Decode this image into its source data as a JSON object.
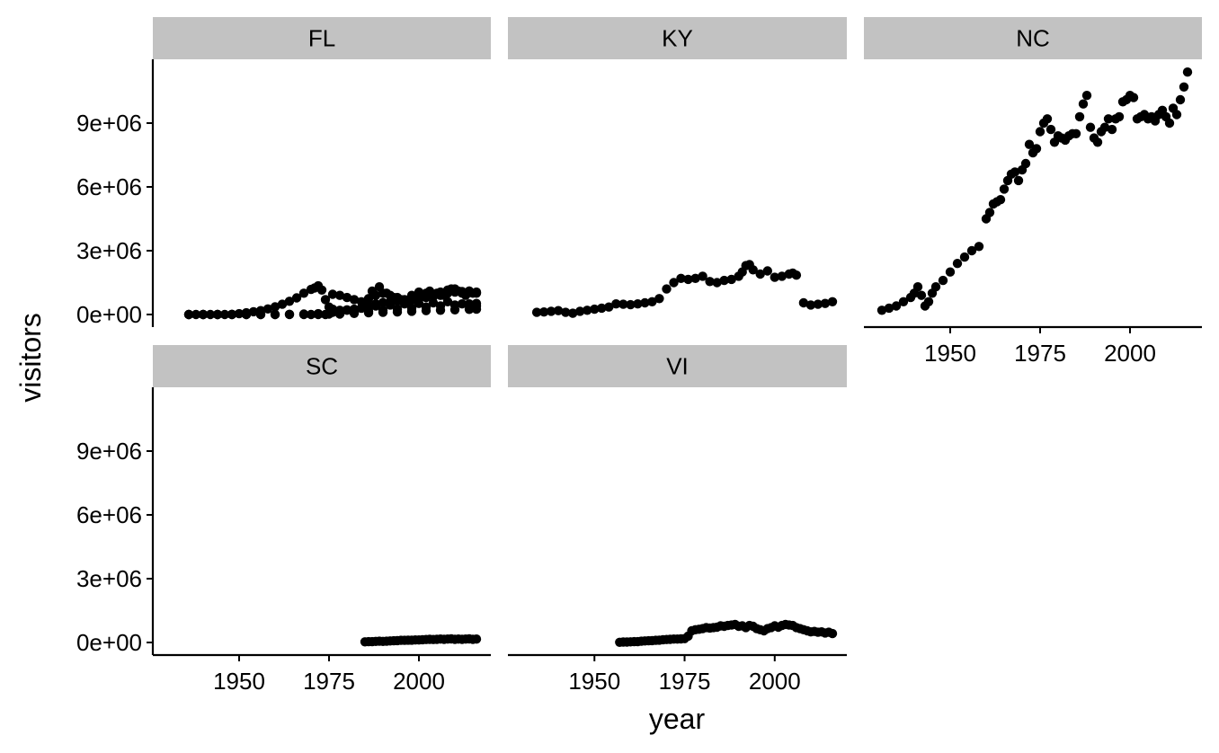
{
  "chart_data": {
    "type": "scatter",
    "facet_by": "state",
    "xlabel": "year",
    "ylabel": "visitors",
    "xlim": [
      1926,
      2020
    ],
    "ylim": [
      -500000,
      12000000
    ],
    "x_ticks": [
      1950,
      1975,
      2000
    ],
    "y_ticks": [
      0,
      3000000,
      6000000,
      9000000
    ],
    "x_tick_labels": [
      "1950",
      "1975",
      "2000"
    ],
    "y_tick_labels": [
      "0e+00",
      "3e+06",
      "6e+06",
      "9e+06"
    ],
    "grid": false,
    "point_color": "#000000",
    "strip_color": "#c2c2c2",
    "panels": [
      {
        "label": "FL",
        "series": [
          {
            "x": [
              1936,
              1938,
              1940,
              1942,
              1944,
              1946,
              1948,
              1950,
              1952,
              1954,
              1956,
              1958,
              1960,
              1962,
              1964,
              1966,
              1968,
              1970,
              1971,
              1972,
              1973,
              1974,
              1975,
              1976,
              1978,
              1980,
              1982,
              1984,
              1986,
              1988,
              1990,
              1992,
              1994,
              1996,
              1998,
              2000,
              2002,
              2004,
              2006,
              2008,
              2010,
              2012,
              2014,
              2016
            ],
            "y": [
              0,
              0,
              0,
              0,
              0,
              0,
              10000,
              40000,
              80000,
              130000,
              180000,
              260000,
              360000,
              480000,
              620000,
              780000,
              1000000,
              1180000,
              1250000,
              1350000,
              1150000,
              700000,
              350000,
              250000,
              200000,
              220000,
              250000,
              300000,
              420000,
              500000,
              560000,
              600000,
              620000,
              650000,
              700000,
              750000,
              800000,
              850000,
              900000,
              1000000,
              1050000,
              1080000,
              1100000,
              1000000
            ]
          },
          {
            "x": [
              1936,
              1940,
              1944,
              1948,
              1952,
              1956,
              1960,
              1964,
              1968,
              1972,
              1976,
              1980,
              1984,
              1988,
              1992,
              1996,
              2000,
              2004,
              2008,
              2012,
              2016
            ],
            "y": [
              0,
              0,
              0,
              0,
              0,
              0,
              0,
              10000,
              20000,
              40000,
              100000,
              200000,
              300000,
              400000,
              450000,
              500000,
              520000,
              550000,
              600000,
              500000,
              400000
            ]
          },
          {
            "x": [
              1936,
              1940,
              1944,
              1948,
              1952,
              1956,
              1960,
              1964,
              1968,
              1972,
              1975,
              1978,
              1982,
              1986,
              1990,
              1994,
              1998,
              2002,
              2006,
              2010,
              2014,
              2016
            ],
            "y": [
              0,
              0,
              0,
              0,
              0,
              0,
              0,
              0,
              0,
              0,
              20000,
              50000,
              100000,
              150000,
              200000,
              250000,
              300000,
              350000,
              400000,
              450000,
              500000,
              520000
            ]
          },
          {
            "x": [
              1976,
              1978,
              1980,
              1982,
              1984,
              1986,
              1988,
              1990,
              1992,
              1994,
              1996,
              1998,
              2000,
              2002,
              2004,
              2006,
              2008,
              2010,
              2012,
              2014,
              2016
            ],
            "y": [
              950000,
              900000,
              800000,
              700000,
              600000,
              750000,
              900000,
              1000000,
              900000,
              800000,
              700000,
              900000,
              1050000,
              1000000,
              950000,
              1050000,
              1150000,
              1200000,
              1000000,
              1100000,
              1050000
            ]
          },
          {
            "x": [
              1987,
              1989,
              1991,
              1993,
              1995,
              1997,
              1999,
              2001,
              2003,
              2005,
              2007,
              2009,
              2011,
              2013,
              2015
            ],
            "y": [
              1100000,
              1300000,
              1000000,
              800000,
              700000,
              600000,
              700000,
              900000,
              1100000,
              1000000,
              900000,
              1200000,
              1100000,
              900000,
              1000000
            ]
          },
          {
            "x": [
              1970,
              1974,
              1978,
              1982,
              1986,
              1990,
              1994,
              1998,
              2002,
              2006,
              2010,
              2014,
              2016
            ],
            "y": [
              0,
              0,
              20000,
              50000,
              80000,
              100000,
              120000,
              150000,
              180000,
              200000,
              220000,
              240000,
              250000
            ]
          }
        ]
      },
      {
        "label": "KY",
        "series": [
          {
            "x": [
              1934,
              1936,
              1938,
              1940,
              1942,
              1944,
              1946,
              1948,
              1950,
              1952,
              1954,
              1956,
              1958,
              1960,
              1962,
              1964,
              1966,
              1968,
              1970,
              1972,
              1974,
              1976,
              1978,
              1980,
              1982,
              1984,
              1986,
              1988,
              1990,
              1991,
              1992,
              1993,
              1994,
              1996,
              1998,
              2000,
              2002,
              2004,
              2005,
              2006,
              2008,
              2010,
              2012,
              2014,
              2016
            ],
            "y": [
              100000,
              120000,
              150000,
              180000,
              100000,
              60000,
              150000,
              200000,
              250000,
              300000,
              350000,
              500000,
              480000,
              460000,
              500000,
              550000,
              600000,
              750000,
              1200000,
              1500000,
              1700000,
              1650000,
              1700000,
              1800000,
              1550000,
              1500000,
              1600000,
              1650000,
              1800000,
              2000000,
              2300000,
              2350000,
              2100000,
              1900000,
              2050000,
              1750000,
              1800000,
              1900000,
              1950000,
              1850000,
              550000,
              450000,
              480000,
              520000,
              600000
            ]
          }
        ]
      },
      {
        "label": "NC",
        "series": [
          {
            "x": [
              1931,
              1933,
              1935,
              1937,
              1939,
              1940,
              1941,
              1942,
              1943,
              1944,
              1945,
              1946,
              1948,
              1950,
              1952,
              1954,
              1956,
              1958,
              1960,
              1961,
              1962,
              1963,
              1964,
              1965,
              1966,
              1967,
              1968,
              1969,
              1970,
              1971,
              1972,
              1973,
              1974,
              1975,
              1976,
              1977,
              1978,
              1979,
              1980,
              1981,
              1982,
              1983,
              1984,
              1985,
              1986,
              1987,
              1988,
              1989,
              1990,
              1991,
              1992,
              1993,
              1994,
              1995,
              1996,
              1997,
              1998,
              1999,
              2000,
              2001,
              2002,
              2003,
              2004,
              2005,
              2006,
              2007,
              2008,
              2009,
              2010,
              2011,
              2012,
              2013,
              2014,
              2015,
              2016
            ],
            "y": [
              200000,
              300000,
              400000,
              600000,
              800000,
              1000000,
              1300000,
              900000,
              400000,
              600000,
              1000000,
              1300000,
              1600000,
              2000000,
              2400000,
              2700000,
              3000000,
              3200000,
              4500000,
              4800000,
              5200000,
              5300000,
              5400000,
              5900000,
              6300000,
              6600000,
              6700000,
              6300000,
              6800000,
              7100000,
              8000000,
              7600000,
              7800000,
              8600000,
              9000000,
              9200000,
              8700000,
              8100000,
              8400000,
              8300000,
              8200000,
              8400000,
              8500000,
              8500000,
              9300000,
              9900000,
              10300000,
              8800000,
              8300000,
              8100000,
              8600000,
              8800000,
              9200000,
              8700000,
              9200000,
              9300000,
              10000000,
              10100000,
              10300000,
              10200000,
              9200000,
              9300000,
              9400000,
              9200000,
              9300000,
              9100000,
              9400000,
              9600000,
              9300000,
              9000000,
              9700000,
              9400000,
              10100000,
              10700000,
              11400000
            ]
          }
        ]
      },
      {
        "label": "SC",
        "series": [
          {
            "x": [
              1985,
              1986,
              1987,
              1988,
              1989,
              1990,
              1991,
              1992,
              1993,
              1994,
              1995,
              1996,
              1997,
              1998,
              1999,
              2000,
              2001,
              2002,
              2003,
              2004,
              2005,
              2006,
              2007,
              2008,
              2009,
              2010,
              2011,
              2012,
              2013,
              2014,
              2015,
              2016
            ],
            "y": [
              30000,
              40000,
              40000,
              50000,
              60000,
              50000,
              60000,
              70000,
              80000,
              90000,
              100000,
              100000,
              110000,
              110000,
              120000,
              120000,
              130000,
              140000,
              150000,
              140000,
              150000,
              160000,
              150000,
              160000,
              170000,
              150000,
              160000,
              150000,
              160000,
              170000,
              150000,
              160000
            ]
          }
        ]
      },
      {
        "label": "VI",
        "series": [
          {
            "x": [
              1957,
              1958,
              1959,
              1960,
              1961,
              1962,
              1963,
              1964,
              1965,
              1966,
              1967,
              1968,
              1969,
              1970,
              1971,
              1972,
              1973,
              1974,
              1975,
              1976,
              1977,
              1978,
              1979,
              1980,
              1981,
              1982,
              1983,
              1984,
              1985,
              1986,
              1987,
              1988,
              1989,
              1990,
              1991,
              1992,
              1993,
              1994,
              1995,
              1996,
              1997,
              1998,
              1999,
              2000,
              2001,
              2002,
              2003,
              2004,
              2005,
              2006,
              2007,
              2008,
              2009,
              2010,
              2011,
              2012,
              2013,
              2014,
              2015,
              2016
            ],
            "y": [
              10000,
              20000,
              20000,
              30000,
              40000,
              40000,
              60000,
              70000,
              80000,
              90000,
              100000,
              110000,
              130000,
              140000,
              150000,
              160000,
              160000,
              170000,
              180000,
              300000,
              550000,
              600000,
              620000,
              650000,
              700000,
              680000,
              700000,
              720000,
              780000,
              760000,
              800000,
              820000,
              850000,
              760000,
              780000,
              700000,
              800000,
              760000,
              650000,
              600000,
              550000,
              650000,
              700000,
              780000,
              720000,
              800000,
              850000,
              820000,
              800000,
              700000,
              650000,
              600000,
              550000,
              500000,
              520000,
              480000,
              500000,
              450000,
              480000,
              420000
            ]
          }
        ]
      }
    ]
  }
}
